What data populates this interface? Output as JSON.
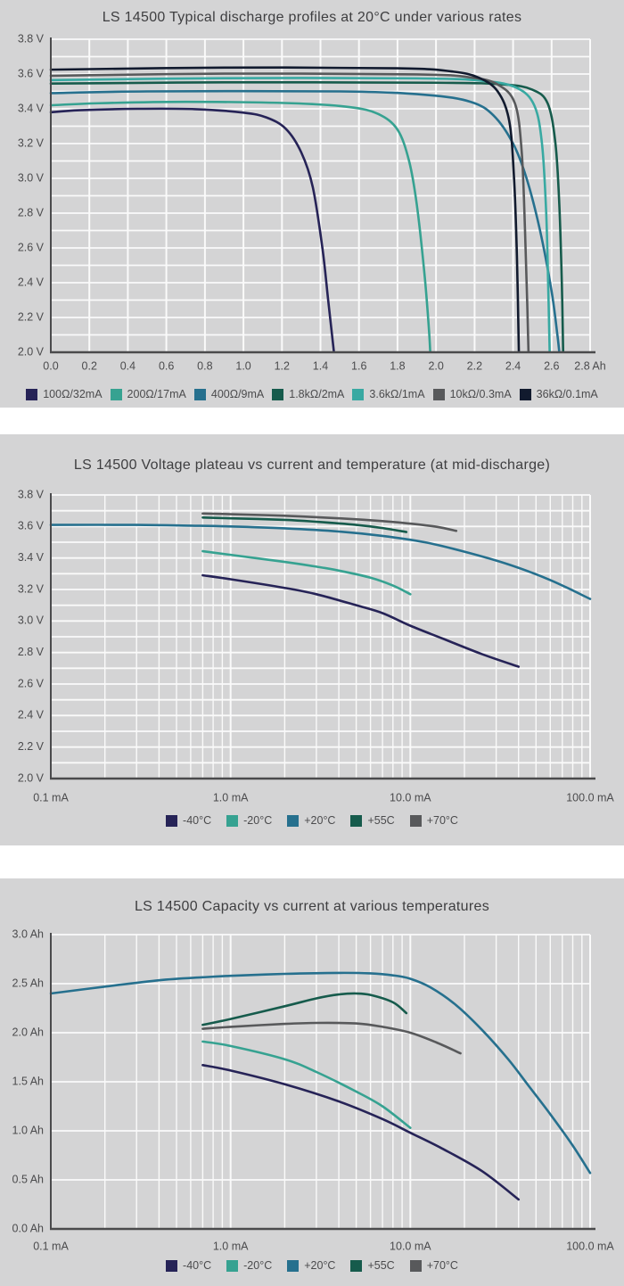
{
  "chart_data": [
    {
      "type": "line",
      "title": "LS 14500 Typical discharge profiles at 20°C under various rates",
      "x_scale": "linear",
      "x_range": [
        0,
        2.8
      ],
      "y_range": [
        2.0,
        3.8
      ],
      "x_unit": "Ah",
      "y_unit": "V",
      "x_ticks": [
        [
          0,
          "0.0"
        ],
        [
          0.2,
          "0.2"
        ],
        [
          0.4,
          "0.4"
        ],
        [
          0.6,
          "0.6"
        ],
        [
          0.8,
          "0.8"
        ],
        [
          1.0,
          "1.0"
        ],
        [
          1.2,
          "1.2"
        ],
        [
          1.4,
          "1.4"
        ],
        [
          1.6,
          "1.6"
        ],
        [
          1.8,
          "1.8"
        ],
        [
          2.0,
          "2.0"
        ],
        [
          2.2,
          "2.2"
        ],
        [
          2.4,
          "2.4"
        ],
        [
          2.6,
          "2.6"
        ],
        [
          2.8,
          "2.8 Ah"
        ]
      ],
      "y_ticks": [
        [
          3.8,
          "3.8 V"
        ],
        [
          3.6,
          "3.6 V"
        ],
        [
          3.4,
          "3.4 V"
        ],
        [
          3.2,
          "3.2 V"
        ],
        [
          3.0,
          "3.0 V"
        ],
        [
          2.8,
          "2.8 V"
        ],
        [
          2.6,
          "2.6 V"
        ],
        [
          2.4,
          "2.4 V"
        ],
        [
          2.2,
          "2.2 V"
        ],
        [
          2.0,
          "2.0 V"
        ]
      ],
      "x_gridlines": [
        0,
        0.2,
        0.4,
        0.6,
        0.8,
        1.0,
        1.2,
        1.4,
        1.6,
        1.8,
        2.0,
        2.2,
        2.4,
        2.6,
        2.8
      ],
      "x_major_gridlines": [],
      "y_gridlines": [
        2.0,
        2.1,
        2.2,
        2.3,
        2.4,
        2.5,
        2.6,
        2.7,
        2.8,
        2.9,
        3.0,
        3.1,
        3.2,
        3.3,
        3.4,
        3.5,
        3.6,
        3.7,
        3.8
      ],
      "legend_position": "bottom",
      "series": [
        {
          "name": "100Ω/32mA",
          "color": "#262357",
          "points": [
            [
              0,
              3.38
            ],
            [
              0.15,
              3.392
            ],
            [
              0.45,
              3.4
            ],
            [
              0.75,
              3.398
            ],
            [
              1.0,
              3.378
            ],
            [
              1.12,
              3.35
            ],
            [
              1.22,
              3.285
            ],
            [
              1.3,
              3.15
            ],
            [
              1.36,
              2.95
            ],
            [
              1.41,
              2.6
            ],
            [
              1.44,
              2.3
            ],
            [
              1.465,
              2.05
            ],
            [
              1.47,
              2.0
            ]
          ]
        },
        {
          "name": "200Ω/17mA",
          "color": "#36A291",
          "points": [
            [
              0,
              3.42
            ],
            [
              0.25,
              3.432
            ],
            [
              0.7,
              3.44
            ],
            [
              1.25,
              3.432
            ],
            [
              1.55,
              3.41
            ],
            [
              1.7,
              3.37
            ],
            [
              1.8,
              3.28
            ],
            [
              1.86,
              3.1
            ],
            [
              1.9,
              2.85
            ],
            [
              1.94,
              2.45
            ],
            [
              1.962,
              2.15
            ],
            [
              1.97,
              2.0
            ]
          ]
        },
        {
          "name": "400Ω/9mA",
          "color": "#26708E",
          "points": [
            [
              0,
              3.49
            ],
            [
              0.5,
              3.5
            ],
            [
              1.5,
              3.5
            ],
            [
              1.95,
              3.48
            ],
            [
              2.18,
              3.44
            ],
            [
              2.3,
              3.36
            ],
            [
              2.4,
              3.2
            ],
            [
              2.47,
              3.0
            ],
            [
              2.54,
              2.7
            ],
            [
              2.6,
              2.35
            ],
            [
              2.63,
              2.1
            ],
            [
              2.64,
              2.0
            ]
          ]
        },
        {
          "name": "1.8kΩ/2mA",
          "color": "#165B4C",
          "points": [
            [
              0,
              3.545
            ],
            [
              0.9,
              3.552
            ],
            [
              2.0,
              3.55
            ],
            [
              2.35,
              3.54
            ],
            [
              2.5,
              3.51
            ],
            [
              2.58,
              3.43
            ],
            [
              2.62,
              3.2
            ],
            [
              2.64,
              2.85
            ],
            [
              2.653,
              2.4
            ],
            [
              2.66,
              2.0
            ]
          ]
        },
        {
          "name": "3.6kΩ/1mA",
          "color": "#38A9A2",
          "points": [
            [
              0,
              3.565
            ],
            [
              0.9,
              3.576
            ],
            [
              1.9,
              3.575
            ],
            [
              2.25,
              3.56
            ],
            [
              2.42,
              3.52
            ],
            [
              2.51,
              3.42
            ],
            [
              2.55,
              3.2
            ],
            [
              2.572,
              2.8
            ],
            [
              2.583,
              2.35
            ],
            [
              2.59,
              2.0
            ]
          ]
        },
        {
          "name": "10kΩ/0.3mA",
          "color": "#58595B",
          "points": [
            [
              0,
              3.59
            ],
            [
              0.9,
              3.602
            ],
            [
              1.9,
              3.598
            ],
            [
              2.18,
              3.58
            ],
            [
              2.32,
              3.54
            ],
            [
              2.41,
              3.43
            ],
            [
              2.445,
              3.15
            ],
            [
              2.462,
              2.7
            ],
            [
              2.473,
              2.3
            ],
            [
              2.48,
              2.0
            ]
          ]
        },
        {
          "name": "36kΩ/0.1mA",
          "color": "#111A2E",
          "points": [
            [
              0,
              3.625
            ],
            [
              0.9,
              3.637
            ],
            [
              1.8,
              3.633
            ],
            [
              2.08,
              3.615
            ],
            [
              2.22,
              3.58
            ],
            [
              2.32,
              3.5
            ],
            [
              2.38,
              3.33
            ],
            [
              2.405,
              3.0
            ],
            [
              2.42,
              2.55
            ],
            [
              2.43,
              2.0
            ]
          ]
        }
      ]
    },
    {
      "type": "line",
      "title": "LS 14500 Voltage plateau vs current and temperature (at mid-discharge)",
      "x_scale": "log",
      "x_range": [
        0.1,
        100
      ],
      "y_range": [
        2.0,
        3.8
      ],
      "x_unit": "mA",
      "y_unit": "V",
      "x_ticks": [
        [
          0.1,
          "0.1 mA"
        ],
        [
          1,
          "1.0 mA"
        ],
        [
          10,
          "10.0 mA"
        ],
        [
          100,
          "100.0 mA"
        ]
      ],
      "y_ticks": [
        [
          3.8,
          "3.8 V"
        ],
        [
          3.6,
          "3.6 V"
        ],
        [
          3.4,
          "3.4 V"
        ],
        [
          3.2,
          "3.2 V"
        ],
        [
          3.0,
          "3.0 V"
        ],
        [
          2.8,
          "2.8 V"
        ],
        [
          2.6,
          "2.6 V"
        ],
        [
          2.4,
          "2.4 V"
        ],
        [
          2.2,
          "2.2 V"
        ],
        [
          2.0,
          "2.0 V"
        ]
      ],
      "x_gridlines": [
        0.1,
        0.2,
        0.3,
        0.4,
        0.5,
        0.6,
        0.7,
        0.8,
        0.9,
        1,
        2,
        3,
        4,
        5,
        6,
        7,
        8,
        9,
        10,
        20,
        30,
        40,
        50,
        60,
        70,
        80,
        90,
        100
      ],
      "x_major_gridlines": [
        0.1,
        1,
        10,
        100
      ],
      "y_gridlines": [
        2.0,
        2.1,
        2.2,
        2.3,
        2.4,
        2.5,
        2.6,
        2.7,
        2.8,
        2.9,
        3.0,
        3.1,
        3.2,
        3.3,
        3.4,
        3.5,
        3.6,
        3.7,
        3.8
      ],
      "legend_position": "bottom",
      "series": [
        {
          "name": "-40°C",
          "color": "#262357",
          "points": [
            [
              0.7,
              3.29
            ],
            [
              1,
              3.265
            ],
            [
              2,
              3.21
            ],
            [
              3,
              3.17
            ],
            [
              5,
              3.1
            ],
            [
              7,
              3.05
            ],
            [
              10,
              2.97
            ],
            [
              15,
              2.89
            ],
            [
              25,
              2.79
            ],
            [
              40,
              2.71
            ]
          ]
        },
        {
          "name": "-20°C",
          "color": "#36A291",
          "points": [
            [
              0.7,
              3.443
            ],
            [
              1,
              3.42
            ],
            [
              2,
              3.375
            ],
            [
              3,
              3.345
            ],
            [
              4,
              3.32
            ],
            [
              6,
              3.275
            ],
            [
              8,
              3.225
            ],
            [
              10,
              3.17
            ]
          ]
        },
        {
          "name": "+20°C",
          "color": "#26708E",
          "points": [
            [
              0.1,
              3.61
            ],
            [
              0.3,
              3.61
            ],
            [
              0.6,
              3.605
            ],
            [
              1,
              3.6
            ],
            [
              2,
              3.588
            ],
            [
              4,
              3.568
            ],
            [
              7,
              3.54
            ],
            [
              12,
              3.5
            ],
            [
              20,
              3.44
            ],
            [
              35,
              3.36
            ],
            [
              60,
              3.26
            ],
            [
              100,
              3.14
            ]
          ]
        },
        {
          "name": "+55C",
          "color": "#165B4C",
          "points": [
            [
              0.7,
              3.657
            ],
            [
              1,
              3.652
            ],
            [
              2,
              3.642
            ],
            [
              3,
              3.63
            ],
            [
              5,
              3.61
            ],
            [
              7,
              3.59
            ],
            [
              9.5,
              3.565
            ]
          ]
        },
        {
          "name": "+70°C",
          "color": "#58595B",
          "points": [
            [
              0.7,
              3.682
            ],
            [
              1,
              3.678
            ],
            [
              2,
              3.668
            ],
            [
              4,
              3.652
            ],
            [
              7,
              3.634
            ],
            [
              10,
              3.618
            ],
            [
              14,
              3.598
            ],
            [
              18,
              3.572
            ]
          ]
        }
      ]
    },
    {
      "type": "line",
      "title": "LS 14500 Capacity vs current at various temperatures",
      "x_scale": "log",
      "x_range": [
        0.1,
        100
      ],
      "y_range": [
        0,
        3.0
      ],
      "x_unit": "mA",
      "y_unit": "Ah",
      "x_ticks": [
        [
          0.1,
          "0.1 mA"
        ],
        [
          1,
          "1.0 mA"
        ],
        [
          10,
          "10.0 mA"
        ],
        [
          100,
          "100.0 mA"
        ]
      ],
      "y_ticks": [
        [
          3.0,
          "3.0 Ah"
        ],
        [
          2.5,
          "2.5 Ah"
        ],
        [
          2.0,
          "2.0 Ah"
        ],
        [
          1.5,
          "1.5 Ah"
        ],
        [
          1.0,
          "1.0 Ah"
        ],
        [
          0.5,
          "0.5 Ah"
        ],
        [
          0.0,
          "0.0 Ah"
        ]
      ],
      "x_gridlines": [
        0.1,
        0.2,
        0.3,
        0.4,
        0.5,
        0.6,
        0.7,
        0.8,
        0.9,
        1,
        2,
        3,
        4,
        5,
        6,
        7,
        8,
        9,
        10,
        20,
        30,
        40,
        50,
        60,
        70,
        80,
        90,
        100
      ],
      "x_major_gridlines": [
        0.1,
        1,
        10,
        100
      ],
      "y_gridlines": [
        0,
        0.5,
        1.0,
        1.5,
        2.0,
        2.5,
        3.0
      ],
      "legend_position": "bottom",
      "series": [
        {
          "name": "-40°C",
          "color": "#262357",
          "points": [
            [
              0.7,
              1.67
            ],
            [
              1,
              1.615
            ],
            [
              2,
              1.475
            ],
            [
              4,
              1.3
            ],
            [
              7,
              1.12
            ],
            [
              10,
              0.98
            ],
            [
              15,
              0.82
            ],
            [
              25,
              0.59
            ],
            [
              40,
              0.3
            ]
          ]
        },
        {
          "name": "-20°C",
          "color": "#36A291",
          "points": [
            [
              0.7,
              1.91
            ],
            [
              1,
              1.865
            ],
            [
              2,
              1.73
            ],
            [
              3,
              1.6
            ],
            [
              5,
              1.4
            ],
            [
              7,
              1.25
            ],
            [
              10,
              1.03
            ]
          ]
        },
        {
          "name": "+20°C",
          "color": "#26708E",
          "points": [
            [
              0.1,
              2.4
            ],
            [
              0.2,
              2.47
            ],
            [
              0.4,
              2.535
            ],
            [
              0.7,
              2.565
            ],
            [
              1,
              2.58
            ],
            [
              2,
              2.6
            ],
            [
              4,
              2.61
            ],
            [
              6,
              2.605
            ],
            [
              8,
              2.585
            ],
            [
              10,
              2.55
            ],
            [
              13,
              2.46
            ],
            [
              18,
              2.28
            ],
            [
              25,
              2.03
            ],
            [
              35,
              1.73
            ],
            [
              45,
              1.47
            ],
            [
              60,
              1.17
            ],
            [
              80,
              0.85
            ],
            [
              100,
              0.57
            ]
          ]
        },
        {
          "name": "+55C",
          "color": "#165B4C",
          "points": [
            [
              0.7,
              2.08
            ],
            [
              1,
              2.14
            ],
            [
              2,
              2.27
            ],
            [
              3,
              2.35
            ],
            [
              4,
              2.39
            ],
            [
              5,
              2.4
            ],
            [
              6,
              2.385
            ],
            [
              8,
              2.31
            ],
            [
              9.5,
              2.2
            ]
          ]
        },
        {
          "name": "+70°C",
          "color": "#58595B",
          "points": [
            [
              0.7,
              2.04
            ],
            [
              1,
              2.06
            ],
            [
              2,
              2.09
            ],
            [
              3,
              2.1
            ],
            [
              5,
              2.095
            ],
            [
              7,
              2.06
            ],
            [
              10,
              2.0
            ],
            [
              14,
              1.9
            ],
            [
              19,
              1.79
            ]
          ]
        }
      ]
    }
  ],
  "style_colors": {
    "panel_background": "#d4d4d5",
    "gridline": "#fafafa",
    "axis": "#4a4a4c",
    "text": "#4b4b4d"
  }
}
